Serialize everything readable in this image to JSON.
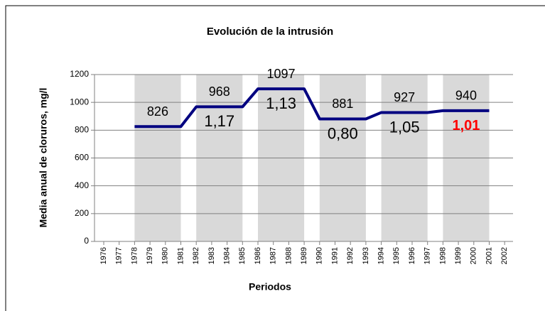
{
  "chart_data": {
    "type": "line",
    "title": "Evolución de la intrusión",
    "x_label": "Periodos",
    "y_label": "Media anual de cloruros, mg/l",
    "categories": [
      1976,
      1977,
      1978,
      1979,
      1980,
      1981,
      1982,
      1983,
      1984,
      1985,
      1986,
      1987,
      1988,
      1989,
      1990,
      1991,
      1992,
      1993,
      1994,
      1995,
      1996,
      1997,
      1998,
      1999,
      2000,
      2001,
      2002
    ],
    "series": [
      {
        "name": "Media anual",
        "color": "#000080",
        "values": [
          null,
          null,
          826,
          826,
          826,
          826,
          968,
          968,
          968,
          968,
          1097,
          1097,
          1097,
          1097,
          881,
          881,
          881,
          881,
          927,
          927,
          927,
          927,
          940,
          940,
          940,
          940,
          null
        ]
      }
    ],
    "annotations": [
      {
        "label": "826"
      },
      {
        "label": "968",
        "ratio": "1,17"
      },
      {
        "label": "1097",
        "ratio": "1,13"
      },
      {
        "label": "881",
        "ratio": "0,80"
      },
      {
        "label": "927",
        "ratio": "1,05"
      },
      {
        "label": "940",
        "ratio": "1,01",
        "ratio_color": "#ff0000"
      }
    ],
    "band_color": "#d9d9d9",
    "ylim": [
      0,
      1200
    ],
    "yticks": [
      0,
      200,
      400,
      600,
      800,
      1000,
      1200
    ],
    "grid": true
  }
}
